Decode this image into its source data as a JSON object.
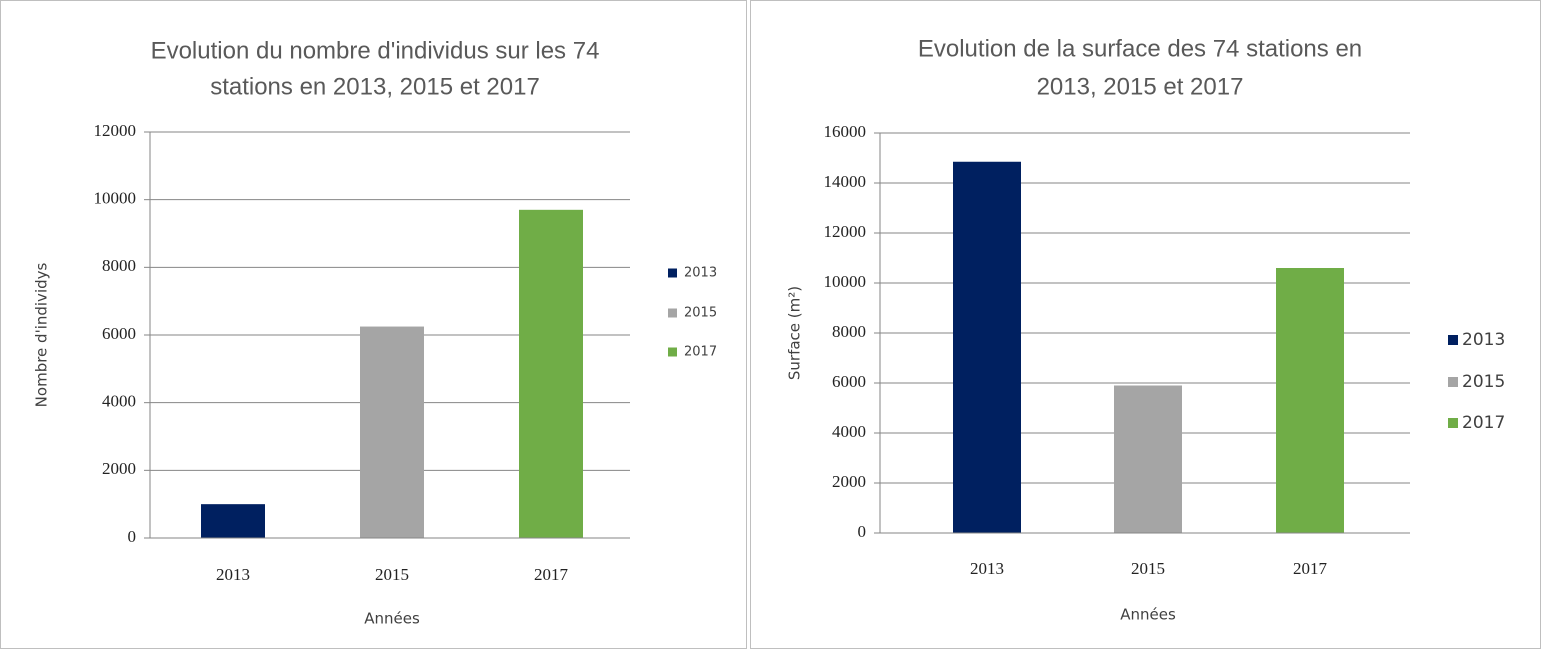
{
  "chart_data": [
    {
      "type": "bar",
      "title": [
        "Evolution du nombre d'individus  sur les 74",
        "stations en 2013, 2015 et 2017"
      ],
      "y_label": "Nombre d'individys",
      "x_label": "Années",
      "categories": [
        "2013",
        "2015",
        "2017"
      ],
      "values": [
        1000,
        6250,
        9700
      ],
      "colors": [
        "#002060",
        "#a5a5a5",
        "#70ad47"
      ],
      "ylim": [
        0,
        12000
      ],
      "yticks": [
        0,
        2000,
        4000,
        6000,
        8000,
        10000,
        12000
      ],
      "grid": true,
      "legend": "right"
    },
    {
      "type": "bar",
      "title": [
        "Evolution de la surface des 74 stations en",
        "2013, 2015 et 2017"
      ],
      "y_label": "Surface (m²)",
      "x_label": "Années",
      "categories": [
        "2013",
        "2015",
        "2017"
      ],
      "values": [
        14850,
        5900,
        10600
      ],
      "colors": [
        "#002060",
        "#a5a5a5",
        "#70ad47"
      ],
      "ylim": [
        0,
        16000
      ],
      "yticks": [
        0,
        2000,
        4000,
        6000,
        8000,
        10000,
        12000,
        14000,
        16000
      ],
      "grid": true,
      "legend": "right"
    }
  ]
}
